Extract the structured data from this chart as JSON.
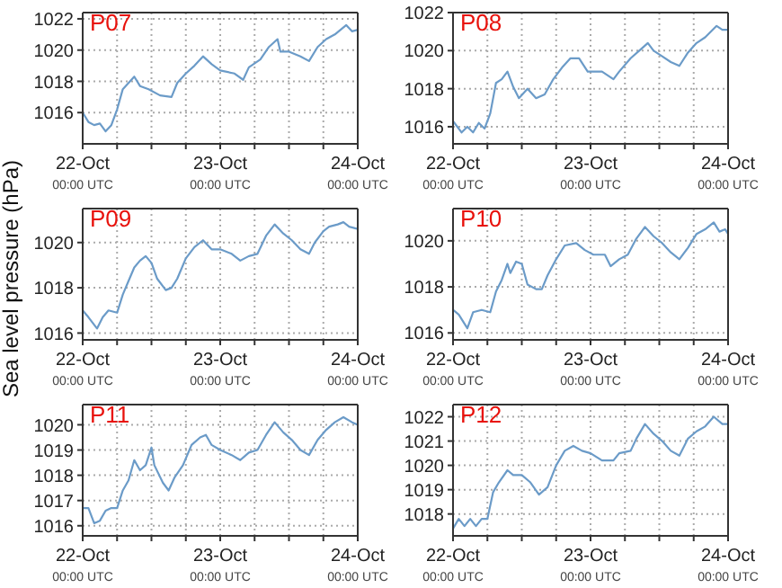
{
  "chart_data": [
    {
      "type": "line",
      "title": "P07",
      "xlim": [
        "--10-22",
        "--10-24"
      ],
      "ylim": [
        1014,
        1022.4
      ],
      "yticks": [
        1016,
        1018,
        1020,
        1022
      ],
      "grid": true,
      "xticks": [
        {
          "value": "--10-22",
          "label": "22-Oct 00:00 UTC"
        },
        {
          "value": "--10-22T06:00",
          "label": null
        },
        {
          "value": "--10-22T12:00",
          "label": null
        },
        {
          "value": "--10-22T18:00",
          "label": null
        },
        {
          "value": "--10-23",
          "label": "23-Oct 00:00 UTC"
        },
        {
          "value": "--10-23T06:00",
          "label": null
        },
        {
          "value": "--10-23T12:00",
          "label": null
        },
        {
          "value": "--10-23T18:00",
          "label": null
        },
        {
          "value": "--10-24",
          "label": "24-Oct 00:00 UTC"
        }
      ],
      "series": [
        {
          "color": "#6b9bc8",
          "x": [
            "--10-22T00:00",
            "--10-22T01:00",
            "--10-22T02:00",
            "--10-22T03:00",
            "--10-22T04:00",
            "--10-22T05:00",
            "--10-22T06:00",
            "--10-22T07:00",
            "--10-22T08:00",
            "--10-22T09:00",
            "--10-22T10:00",
            "--10-22T11:30",
            "--10-22T13:30",
            "--10-22T15:30",
            "--10-22T16:30",
            "--10-22T18:00",
            "--10-22T19:30",
            "--10-22T21:00",
            "--10-22T22:30",
            "--10-23T00:00",
            "--10-23T02:30",
            "--10-23T04:00",
            "--10-23T05:00",
            "--10-23T07:00",
            "--10-23T08:30",
            "--10-23T10:00",
            "--10-23T10:30",
            "--10-23T12:00",
            "--10-23T14:00",
            "--10-23T15:30",
            "--10-23T17:00",
            "--10-23T18:30",
            "--10-23T20:00",
            "--10-23T22:00",
            "--10-23T23:00",
            "--10-24T00:00"
          ],
          "values": [
            1016.0,
            1015.4,
            1015.2,
            1015.3,
            1014.8,
            1015.2,
            1016.2,
            1017.5,
            1017.9,
            1018.3,
            1017.7,
            1017.5,
            1017.1,
            1017.0,
            1017.9,
            1018.5,
            1019.0,
            1019.6,
            1019.1,
            1018.7,
            1018.5,
            1018.1,
            1018.9,
            1019.4,
            1020.2,
            1020.7,
            1019.9,
            1019.9,
            1019.6,
            1019.3,
            1020.2,
            1020.7,
            1021.0,
            1021.6,
            1021.2,
            1021.3
          ]
        }
      ]
    },
    {
      "type": "line",
      "title": "P08",
      "xlim": [
        "--10-22",
        "--10-24"
      ],
      "ylim": [
        1015.1,
        1022
      ],
      "yticks": [
        1016,
        1018,
        1020,
        1022
      ],
      "grid": true,
      "xticks": [
        {
          "value": "--10-22",
          "label": "22-Oct 00:00 UTC"
        },
        {
          "value": "--10-22T06:00",
          "label": null
        },
        {
          "value": "--10-22T12:00",
          "label": null
        },
        {
          "value": "--10-22T18:00",
          "label": null
        },
        {
          "value": "--10-23",
          "label": "23-Oct 00:00 UTC"
        },
        {
          "value": "--10-23T06:00",
          "label": null
        },
        {
          "value": "--10-23T12:00",
          "label": null
        },
        {
          "value": "--10-23T18:00",
          "label": null
        },
        {
          "value": "--10-24",
          "label": "24-Oct 00:00 UTC"
        }
      ],
      "series": [
        {
          "color": "#6b9bc8",
          "x": [
            "--10-22T00:00",
            "--10-22T01:30",
            "--10-22T02:30",
            "--10-22T03:30",
            "--10-22T04:30",
            "--10-22T05:30",
            "--10-22T06:30",
            "--10-22T07:30",
            "--10-22T08:30",
            "--10-22T09:30",
            "--10-22T10:30",
            "--10-22T11:30",
            "--10-22T13:00",
            "--10-22T14:30",
            "--10-22T16:00",
            "--10-22T17:30",
            "--10-22T19:00",
            "--10-22T20:30",
            "--10-22T22:00",
            "--10-22T23:30",
            "--10-23T02:00",
            "--10-23T04:00",
            "--10-23T05:00",
            "--10-23T07:00",
            "--10-23T08:30",
            "--10-23T10:00",
            "--10-23T11:00",
            "--10-23T12:30",
            "--10-23T14:00",
            "--10-23T15:30",
            "--10-23T17:00",
            "--10-23T18:30",
            "--10-23T20:00",
            "--10-23T22:00",
            "--10-23T23:00",
            "--10-24T00:00"
          ],
          "values": [
            1016.3,
            1015.7,
            1016.0,
            1015.7,
            1016.2,
            1015.9,
            1016.7,
            1018.3,
            1018.5,
            1018.9,
            1018.1,
            1017.5,
            1018.0,
            1017.5,
            1017.7,
            1018.5,
            1019.1,
            1019.6,
            1019.6,
            1018.9,
            1018.9,
            1018.5,
            1018.9,
            1019.6,
            1020.0,
            1020.4,
            1020.0,
            1019.7,
            1019.4,
            1019.2,
            1019.9,
            1020.4,
            1020.7,
            1021.3,
            1021.1,
            1021.1
          ]
        }
      ]
    },
    {
      "type": "line",
      "title": "P09",
      "ylabel": "Sea level pressure (hPa)",
      "xlim": [
        "--10-22",
        "--10-24"
      ],
      "ylim": [
        1015.7,
        1021.5
      ],
      "yticks": [
        1016,
        1018,
        1020
      ],
      "grid": true,
      "xticks": [
        {
          "value": "--10-22",
          "label": "22-Oct 00:00 UTC"
        },
        {
          "value": "--10-22T06:00",
          "label": null
        },
        {
          "value": "--10-22T12:00",
          "label": null
        },
        {
          "value": "--10-22T18:00",
          "label": null
        },
        {
          "value": "--10-23",
          "label": "23-Oct 00:00 UTC"
        },
        {
          "value": "--10-23T06:00",
          "label": null
        },
        {
          "value": "--10-23T12:00",
          "label": null
        },
        {
          "value": "--10-23T18:00",
          "label": null
        },
        {
          "value": "--10-24",
          "label": "24-Oct 00:00 UTC"
        }
      ],
      "series": [
        {
          "color": "#6b9bc8",
          "x": [
            "--10-22T00:00",
            "--10-22T01:00",
            "--10-22T02:30",
            "--10-22T03:30",
            "--10-22T04:30",
            "--10-22T06:00",
            "--10-22T07:00",
            "--10-22T08:00",
            "--10-22T09:00",
            "--10-22T10:00",
            "--10-22T11:00",
            "--10-22T12:00",
            "--10-22T13:00",
            "--10-22T14:30",
            "--10-22T15:30",
            "--10-22T16:30",
            "--10-22T18:00",
            "--10-22T19:30",
            "--10-22T21:00",
            "--10-22T22:30",
            "--10-23T00:00",
            "--10-23T02:00",
            "--10-23T03:30",
            "--10-23T05:00",
            "--10-23T06:30",
            "--10-23T08:00",
            "--10-23T09:30",
            "--10-23T11:00",
            "--10-23T12:30",
            "--10-23T14:00",
            "--10-23T15:30",
            "--10-23T16:30",
            "--10-23T18:00",
            "--10-23T19:00",
            "--10-23T20:30",
            "--10-23T21:30",
            "--10-23T22:30",
            "--10-24T00:00"
          ],
          "values": [
            1017.0,
            1016.7,
            1016.2,
            1016.7,
            1017.0,
            1016.9,
            1017.7,
            1018.3,
            1018.9,
            1019.2,
            1019.4,
            1019.1,
            1018.4,
            1017.9,
            1018.0,
            1018.4,
            1019.3,
            1019.8,
            1020.1,
            1019.7,
            1019.7,
            1019.5,
            1019.2,
            1019.4,
            1019.5,
            1020.3,
            1020.8,
            1020.4,
            1020.1,
            1019.7,
            1019.5,
            1020.0,
            1020.5,
            1020.7,
            1020.8,
            1020.9,
            1020.7,
            1020.6
          ]
        }
      ]
    },
    {
      "type": "line",
      "title": "P10",
      "xlim": [
        "--10-22",
        "--10-24"
      ],
      "ylim": [
        1015.7,
        1021.4
      ],
      "yticks": [
        1016,
        1018,
        1020
      ],
      "grid": true,
      "xticks": [
        {
          "value": "--10-22",
          "label": "22-Oct 00:00 UTC"
        },
        {
          "value": "--10-22T06:00",
          "label": null
        },
        {
          "value": "--10-22T12:00",
          "label": null
        },
        {
          "value": "--10-22T18:00",
          "label": null
        },
        {
          "value": "--10-23",
          "label": "23-Oct 00:00 UTC"
        },
        {
          "value": "--10-23T06:00",
          "label": null
        },
        {
          "value": "--10-23T12:00",
          "label": null
        },
        {
          "value": "--10-23T18:00",
          "label": null
        },
        {
          "value": "--10-24",
          "label": "24-Oct 00:00 UTC"
        }
      ],
      "series": [
        {
          "color": "#6b9bc8",
          "x": [
            "--10-22T00:00",
            "--10-22T01:00",
            "--10-22T02:30",
            "--10-22T03:30",
            "--10-22T05:00",
            "--10-22T06:30",
            "--10-22T07:30",
            "--10-22T08:30",
            "--10-22T09:30",
            "--10-22T10:00",
            "--10-22T11:00",
            "--10-22T12:00",
            "--10-22T13:00",
            "--10-22T14:30",
            "--10-22T15:30",
            "--10-22T16:30",
            "--10-22T18:00",
            "--10-22T19:30",
            "--10-22T21:30",
            "--10-22T23:00",
            "--10-23T00:30",
            "--10-23T02:30",
            "--10-23T03:30",
            "--10-23T05:00",
            "--10-23T06:30",
            "--10-23T08:00",
            "--10-23T09:30",
            "--10-23T11:00",
            "--10-23T12:30",
            "--10-23T14:00",
            "--10-23T15:30",
            "--10-23T17:00",
            "--10-23T18:30",
            "--10-23T20:00",
            "--10-23T21:30",
            "--10-23T22:30",
            "--10-23T23:30",
            "--10-24T00:00"
          ],
          "values": [
            1017.0,
            1016.8,
            1016.2,
            1016.9,
            1017.0,
            1016.9,
            1017.8,
            1018.3,
            1019.0,
            1018.6,
            1019.1,
            1019.0,
            1018.1,
            1017.9,
            1017.9,
            1018.5,
            1019.2,
            1019.8,
            1019.9,
            1019.6,
            1019.4,
            1019.4,
            1018.9,
            1019.2,
            1019.4,
            1020.1,
            1020.6,
            1020.2,
            1019.9,
            1019.5,
            1019.2,
            1019.7,
            1020.3,
            1020.5,
            1020.8,
            1020.4,
            1020.5,
            1020.3
          ]
        }
      ]
    },
    {
      "type": "line",
      "title": "P11",
      "xlim": [
        "--10-22",
        "--10-24"
      ],
      "ylim": [
        1015.6,
        1020.8
      ],
      "yticks": [
        1016,
        1017,
        1018,
        1019,
        1020
      ],
      "grid": true,
      "xticks": [
        {
          "value": "--10-22",
          "label": "22-Oct 00:00 UTC"
        },
        {
          "value": "--10-22T06:00",
          "label": null
        },
        {
          "value": "--10-22T12:00",
          "label": null
        },
        {
          "value": "--10-22T18:00",
          "label": null
        },
        {
          "value": "--10-23",
          "label": "23-Oct 00:00 UTC"
        },
        {
          "value": "--10-23T06:00",
          "label": null
        },
        {
          "value": "--10-23T12:00",
          "label": null
        },
        {
          "value": "--10-23T18:00",
          "label": null
        },
        {
          "value": "--10-24",
          "label": "24-Oct 00:00 UTC"
        }
      ],
      "series": [
        {
          "color": "#6b9bc8",
          "x": [
            "--10-22T00:00",
            "--10-22T01:00",
            "--10-22T02:00",
            "--10-22T03:00",
            "--10-22T04:00",
            "--10-22T05:00",
            "--10-22T06:00",
            "--10-22T07:00",
            "--10-22T08:00",
            "--10-22T09:00",
            "--10-22T10:00",
            "--10-22T11:00",
            "--10-22T12:00",
            "--10-22T12:30",
            "--10-22T14:00",
            "--10-22T15:00",
            "--10-22T16:00",
            "--10-22T17:30",
            "--10-22T19:00",
            "--10-22T20:30",
            "--10-22T21:30",
            "--10-22T22:30",
            "--10-23T00:00",
            "--10-23T02:00",
            "--10-23T03:30",
            "--10-23T05:00",
            "--10-23T06:30",
            "--10-23T08:00",
            "--10-23T09:30",
            "--10-23T11:00",
            "--10-23T12:30",
            "--10-23T14:00",
            "--10-23T15:30",
            "--10-23T17:00",
            "--10-23T18:30",
            "--10-23T20:00",
            "--10-23T21:30",
            "--10-23T23:00",
            "--10-24T00:00"
          ],
          "values": [
            1016.7,
            1016.7,
            1016.1,
            1016.2,
            1016.6,
            1016.7,
            1016.7,
            1017.4,
            1017.8,
            1018.6,
            1018.2,
            1018.4,
            1019.1,
            1018.4,
            1017.7,
            1017.4,
            1017.9,
            1018.4,
            1019.2,
            1019.5,
            1019.6,
            1019.2,
            1019.0,
            1018.8,
            1018.6,
            1018.9,
            1019.0,
            1019.6,
            1020.1,
            1019.7,
            1019.4,
            1019.0,
            1018.8,
            1019.4,
            1019.8,
            1020.1,
            1020.3,
            1020.1,
            1020.0
          ]
        }
      ]
    },
    {
      "type": "line",
      "title": "P12",
      "xlim": [
        "--10-22",
        "--10-24"
      ],
      "ylim": [
        1017.1,
        1022.5
      ],
      "yticks": [
        1018,
        1019,
        1020,
        1021,
        1022
      ],
      "grid": true,
      "xticks": [
        {
          "value": "--10-22",
          "label": "22-Oct 00:00 UTC"
        },
        {
          "value": "--10-22T06:00",
          "label": null
        },
        {
          "value": "--10-22T12:00",
          "label": null
        },
        {
          "value": "--10-22T18:00",
          "label": null
        },
        {
          "value": "--10-23",
          "label": "23-Oct 00:00 UTC"
        },
        {
          "value": "--10-23T06:00",
          "label": null
        },
        {
          "value": "--10-23T12:00",
          "label": null
        },
        {
          "value": "--10-23T18:00",
          "label": null
        },
        {
          "value": "--10-24",
          "label": "24-Oct 00:00 UTC"
        }
      ],
      "series": [
        {
          "color": "#6b9bc8",
          "x": [
            "--10-22T00:00",
            "--10-22T01:00",
            "--10-22T02:00",
            "--10-22T03:00",
            "--10-22T04:00",
            "--10-22T05:00",
            "--10-22T06:00",
            "--10-22T07:00",
            "--10-22T08:00",
            "--10-22T09:30",
            "--10-22T10:30",
            "--10-22T12:00",
            "--10-22T13:30",
            "--10-22T15:00",
            "--10-22T16:30",
            "--10-22T18:00",
            "--10-22T19:30",
            "--10-22T21:00",
            "--10-22T22:30",
            "--10-23T00:00",
            "--10-23T02:00",
            "--10-23T04:00",
            "--10-23T05:00",
            "--10-23T07:00",
            "--10-23T08:00",
            "--10-23T09:30",
            "--10-23T11:00",
            "--10-23T12:30",
            "--10-23T14:00",
            "--10-23T15:30",
            "--10-23T17:00",
            "--10-23T18:30",
            "--10-23T20:00",
            "--10-23T21:30",
            "--10-23T23:00",
            "--10-24T00:00"
          ],
          "values": [
            1017.4,
            1017.8,
            1017.5,
            1017.8,
            1017.5,
            1017.8,
            1017.8,
            1018.9,
            1019.3,
            1019.8,
            1019.6,
            1019.6,
            1019.3,
            1018.8,
            1019.1,
            1020.0,
            1020.6,
            1020.8,
            1020.6,
            1020.5,
            1020.2,
            1020.2,
            1020.5,
            1020.6,
            1021.1,
            1021.7,
            1021.3,
            1021.0,
            1020.6,
            1020.4,
            1021.1,
            1021.4,
            1021.6,
            1022.0,
            1021.7,
            1021.7
          ]
        }
      ]
    }
  ]
}
